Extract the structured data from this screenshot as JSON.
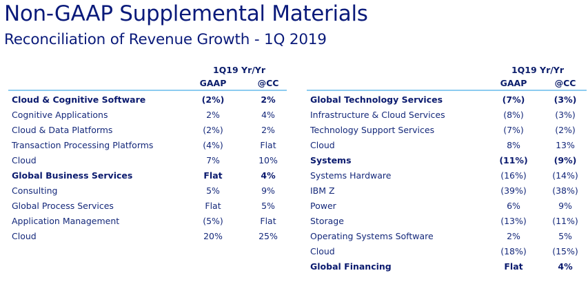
{
  "header": {
    "title": "Non-GAAP Supplemental Materials",
    "subtitle": "Reconciliation of Revenue Growth - 1Q 2019"
  },
  "left_table": {
    "period_label": "1Q19 Yr/Yr",
    "col1": "GAAP",
    "col2": "@CC",
    "rows": [
      {
        "label": "Cloud & Cognitive Software",
        "gaap": "(2%)",
        "cc": "2%",
        "bold": true
      },
      {
        "label": "Cognitive Applications",
        "gaap": "2%",
        "cc": "4%",
        "bold": false
      },
      {
        "label": "Cloud & Data Platforms",
        "gaap": "(2%)",
        "cc": "2%",
        "bold": false
      },
      {
        "label": "Transaction Processing Platforms",
        "gaap": "(4%)",
        "cc": "Flat",
        "bold": false
      },
      {
        "label": "Cloud",
        "gaap": "7%",
        "cc": "10%",
        "bold": false
      },
      {
        "label": "Global Business Services",
        "gaap": "Flat",
        "cc": "4%",
        "bold": true
      },
      {
        "label": "Consulting",
        "gaap": "5%",
        "cc": "9%",
        "bold": false
      },
      {
        "label": "Global Process Services",
        "gaap": "Flat",
        "cc": "5%",
        "bold": false
      },
      {
        "label": "Application Management",
        "gaap": "(5%)",
        "cc": "Flat",
        "bold": false
      },
      {
        "label": "Cloud",
        "gaap": "20%",
        "cc": "25%",
        "bold": false
      }
    ]
  },
  "right_table": {
    "period_label": "1Q19 Yr/Yr",
    "col1": "GAAP",
    "col2": "@CC",
    "rows": [
      {
        "label": "Global Technology Services",
        "gaap": "(7%)",
        "cc": "(3%)",
        "bold": true
      },
      {
        "label": "Infrastructure & Cloud Services",
        "gaap": "(8%)",
        "cc": "(3%)",
        "bold": false
      },
      {
        "label": "Technology Support Services",
        "gaap": "(7%)",
        "cc": "(2%)",
        "bold": false
      },
      {
        "label": "Cloud",
        "gaap": "8%",
        "cc": "13%",
        "bold": false
      },
      {
        "label": "Systems",
        "gaap": "(11%)",
        "cc": "(9%)",
        "bold": true
      },
      {
        "label": "Systems Hardware",
        "gaap": "(16%)",
        "cc": "(14%)",
        "bold": false
      },
      {
        "label": "IBM Z",
        "gaap": "(39%)",
        "cc": "(38%)",
        "bold": false
      },
      {
        "label": "Power",
        "gaap": "6%",
        "cc": "9%",
        "bold": false
      },
      {
        "label": "Storage",
        "gaap": "(13%)",
        "cc": "(11%)",
        "bold": false
      },
      {
        "label": "Operating Systems Software",
        "gaap": "2%",
        "cc": "5%",
        "bold": false
      },
      {
        "label": "Cloud",
        "gaap": "(18%)",
        "cc": "(15%)",
        "bold": false
      },
      {
        "label": "Global Financing",
        "gaap": "Flat",
        "cc": "4%",
        "bold": true
      }
    ]
  }
}
